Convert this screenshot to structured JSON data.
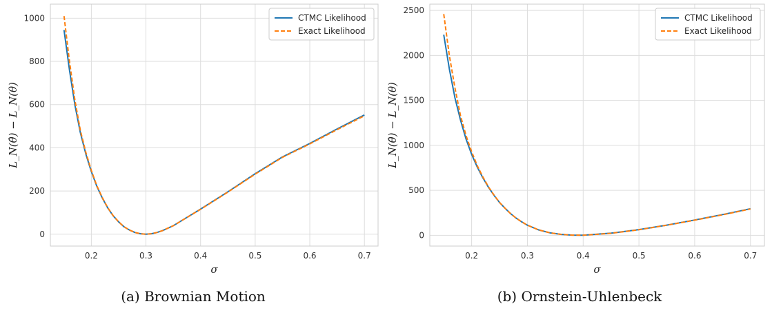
{
  "captions": [
    "(a) Brownian Motion",
    "(b) Ornstein-Uhlenbeck"
  ],
  "colors": {
    "ctmc": "#1f77b4",
    "exact": "#ff7f0e",
    "grid": "#dddddd",
    "frame": "#cccccc"
  },
  "chart_data": [
    {
      "type": "line",
      "title": "",
      "xlabel": "σ",
      "ylabel": "L_N(θ̂) − L_N(θ)",
      "xlim": [
        0.125,
        0.725
      ],
      "ylim": [
        -55,
        1065
      ],
      "xticks": [
        0.2,
        0.3,
        0.4,
        0.5,
        0.6,
        0.7
      ],
      "xtick_labels": [
        "0.2",
        "0.3",
        "0.4",
        "0.5",
        "0.6",
        "0.7"
      ],
      "yticks": [
        0,
        200,
        400,
        600,
        800,
        1000
      ],
      "ytick_labels": [
        "0",
        "200",
        "400",
        "600",
        "800",
        "1000"
      ],
      "grid": true,
      "legend": "top-right",
      "series": [
        {
          "name": "CTMC Likelihood",
          "style": "solid",
          "x": [
            0.15,
            0.16,
            0.17,
            0.18,
            0.19,
            0.2,
            0.21,
            0.22,
            0.23,
            0.24,
            0.25,
            0.26,
            0.27,
            0.28,
            0.29,
            0.3,
            0.31,
            0.32,
            0.33,
            0.35,
            0.4,
            0.45,
            0.5,
            0.55,
            0.6,
            0.65,
            0.7
          ],
          "y": [
            945,
            760,
            598,
            470,
            370,
            290,
            222,
            168,
            122,
            85,
            57,
            34,
            19,
            8,
            2,
            0,
            2,
            8,
            16,
            39,
            116,
            196,
            280,
            358,
            420,
            487,
            552
          ]
        },
        {
          "name": "Exact Likelihood",
          "style": "dashed",
          "x": [
            0.15,
            0.16,
            0.17,
            0.18,
            0.19,
            0.2,
            0.21,
            0.22,
            0.23,
            0.24,
            0.25,
            0.26,
            0.27,
            0.28,
            0.29,
            0.3,
            0.31,
            0.32,
            0.33,
            0.35,
            0.4,
            0.45,
            0.5,
            0.55,
            0.6,
            0.65,
            0.7
          ],
          "y": [
            1010,
            800,
            620,
            480,
            378,
            295,
            225,
            170,
            123,
            86,
            57,
            34,
            19,
            8,
            2,
            0,
            2,
            8,
            16,
            39,
            115,
            195,
            278,
            356,
            418,
            484,
            548
          ]
        }
      ]
    },
    {
      "type": "line",
      "title": "",
      "xlabel": "σ",
      "ylabel": "L_N(θ̂) − L_N(θ)",
      "xlim": [
        0.125,
        0.725
      ],
      "ylim": [
        -120,
        2570
      ],
      "xticks": [
        0.2,
        0.3,
        0.4,
        0.5,
        0.6,
        0.7
      ],
      "xtick_labels": [
        "0.2",
        "0.3",
        "0.4",
        "0.5",
        "0.6",
        "0.7"
      ],
      "yticks": [
        0,
        500,
        1000,
        1500,
        2000,
        2500
      ],
      "ytick_labels": [
        "0",
        "500",
        "1000",
        "1500",
        "2000",
        "2500"
      ],
      "grid": true,
      "legend": "top-right",
      "series": [
        {
          "name": "CTMC Likelihood",
          "style": "solid",
          "x": [
            0.15,
            0.16,
            0.17,
            0.18,
            0.19,
            0.2,
            0.21,
            0.22,
            0.23,
            0.24,
            0.25,
            0.26,
            0.27,
            0.28,
            0.29,
            0.3,
            0.32,
            0.34,
            0.36,
            0.38,
            0.4,
            0.45,
            0.5,
            0.55,
            0.6,
            0.65,
            0.7
          ],
          "y": [
            2230,
            1850,
            1530,
            1280,
            1070,
            900,
            760,
            640,
            535,
            445,
            365,
            300,
            240,
            190,
            148,
            112,
            60,
            28,
            10,
            2,
            0,
            23,
            63,
            113,
            170,
            230,
            295
          ]
        },
        {
          "name": "Exact Likelihood",
          "style": "dashed",
          "x": [
            0.15,
            0.16,
            0.17,
            0.18,
            0.19,
            0.2,
            0.21,
            0.22,
            0.23,
            0.24,
            0.25,
            0.26,
            0.27,
            0.28,
            0.29,
            0.3,
            0.32,
            0.34,
            0.36,
            0.38,
            0.4,
            0.45,
            0.5,
            0.55,
            0.6,
            0.65,
            0.7
          ],
          "y": [
            2460,
            2000,
            1640,
            1330,
            1110,
            930,
            775,
            650,
            540,
            448,
            367,
            300,
            240,
            190,
            148,
            112,
            60,
            28,
            10,
            2,
            0,
            22,
            62,
            112,
            168,
            228,
            292
          ]
        }
      ]
    }
  ]
}
